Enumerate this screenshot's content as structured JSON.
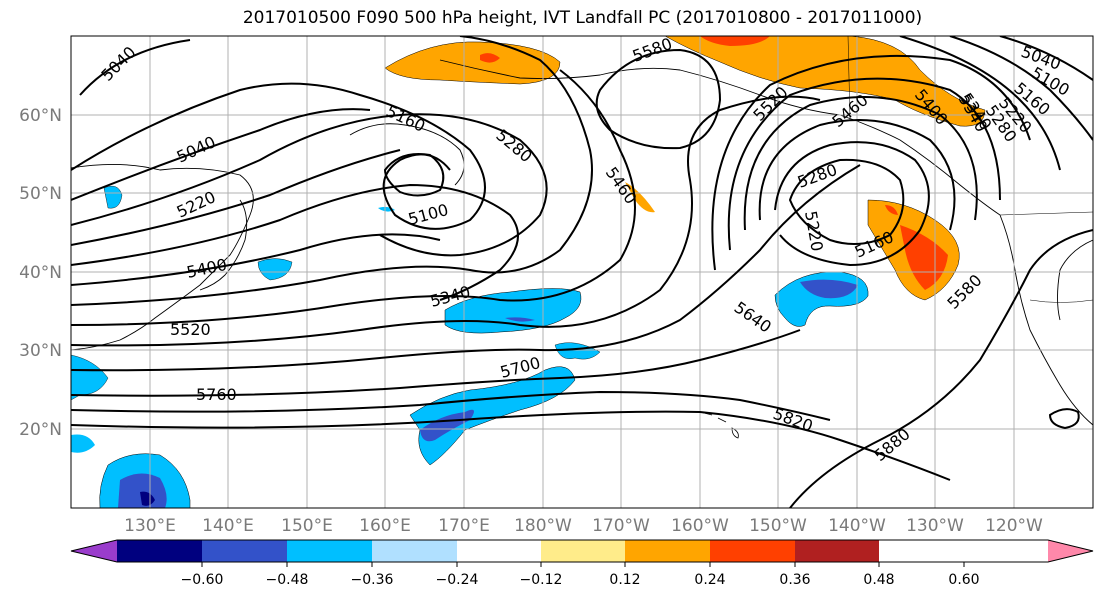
{
  "title": "2017010500 F090 500 hPa height, IVT Landfall PC (2017010800 - 2017011000)",
  "map": {
    "lat_labels": [
      "60°N",
      "50°N",
      "40°N",
      "30°N",
      "20°N"
    ],
    "lon_labels": [
      "130°E",
      "140°E",
      "150°E",
      "160°E",
      "170°E",
      "180°W",
      "170°W",
      "160°W",
      "150°W",
      "140°W",
      "130°W",
      "120°W"
    ],
    "contour_labels": [
      "5040",
      "5040",
      "5160",
      "5280",
      "5580",
      "5460",
      "5520",
      "5460",
      "5400",
      "5340",
      "5280",
      "5220",
      "5100",
      "5220",
      "5400",
      "5340",
      "5520",
      "5700",
      "5760",
      "5640",
      "5160",
      "5580",
      "5820",
      "5880",
      "5040",
      "5100",
      "5160",
      "5220",
      "5280",
      "5340"
    ]
  },
  "colorbar": {
    "ticks": [
      "−0.60",
      "−0.48",
      "−0.36",
      "−0.24",
      "−0.12",
      "0.12",
      "0.24",
      "0.36",
      "0.48",
      "0.60"
    ],
    "colors": [
      "#9a3ccc",
      "#00007f",
      "#3352c9",
      "#00bfff",
      "#b0e0ff",
      "#ffffff",
      "#ffec8a",
      "#ffa500",
      "#ff4000",
      "#b02020",
      "#ff88aa"
    ]
  }
}
